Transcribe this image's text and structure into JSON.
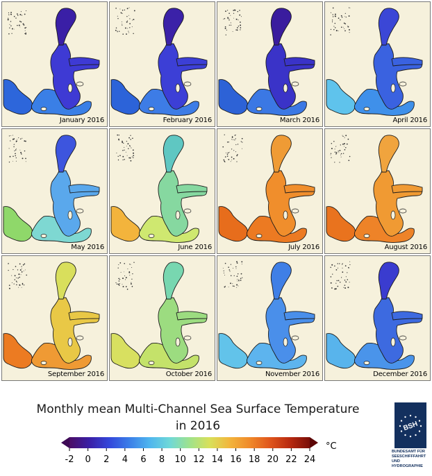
{
  "panels": [
    {
      "label": "January 2016",
      "colors": {
        "north": "#3a1fa6",
        "central": "#3e3ad4",
        "south": "#3a7fe6",
        "west": "#2d66db"
      }
    },
    {
      "label": "February 2016",
      "colors": {
        "north": "#3b21a8",
        "central": "#3c3fd6",
        "south": "#3d7ce6",
        "west": "#2c63d9"
      }
    },
    {
      "label": "March 2016",
      "colors": {
        "north": "#3a1c9e",
        "central": "#3a33c8",
        "south": "#3b78e4",
        "west": "#2d62d6"
      }
    },
    {
      "label": "April 2016",
      "colors": {
        "north": "#3b47d6",
        "central": "#3a62e0",
        "south": "#3f90ea",
        "west": "#5fc3ec"
      }
    },
    {
      "label": "May 2016",
      "colors": {
        "north": "#3d55de",
        "central": "#5aa8ec",
        "south": "#7ed8d2",
        "west": "#8fd86a"
      }
    },
    {
      "label": "June 2016",
      "colors": {
        "north": "#5fc7c2",
        "central": "#86d8a0",
        "south": "#cfe870",
        "west": "#f3b43c"
      }
    },
    {
      "label": "July 2016",
      "colors": {
        "north": "#ef9b35",
        "central": "#f08e2c",
        "south": "#ec7a22",
        "west": "#e76d1c"
      }
    },
    {
      "label": "August 2016",
      "colors": {
        "north": "#f0a43e",
        "central": "#f09a33",
        "south": "#ee8328",
        "west": "#e9731e"
      }
    },
    {
      "label": "September 2016",
      "colors": {
        "north": "#d9df5c",
        "central": "#e9c846",
        "south": "#ef9a34",
        "west": "#ec7b22"
      }
    },
    {
      "label": "October 2016",
      "colors": {
        "north": "#78d7b0",
        "central": "#9cdc80",
        "south": "#c4e26a",
        "west": "#d8e060"
      }
    },
    {
      "label": "November 2016",
      "colors": {
        "north": "#3f7fe6",
        "central": "#4a8fea",
        "south": "#5db4ee",
        "west": "#62c3ea"
      }
    },
    {
      "label": "December 2016",
      "colors": {
        "north": "#3a3ccf",
        "central": "#3d6ae0",
        "south": "#4a94ea",
        "west": "#58b4ec"
      }
    }
  ],
  "title": {
    "line1": "Monthly mean Multi-Channel Sea Surface Temperature",
    "line2": "in 2016"
  },
  "colorbar": {
    "ticks": [
      "-2",
      "0",
      "2",
      "4",
      "6",
      "8",
      "10",
      "12",
      "14",
      "16",
      "18",
      "20",
      "22",
      "24"
    ],
    "min": -2,
    "max": 24,
    "unit": "°C",
    "stops": [
      "#4b0d66",
      "#3a1fa6",
      "#3448db",
      "#3b7fe8",
      "#4fb5ee",
      "#6fd8d8",
      "#9fe28c",
      "#d8e05a",
      "#f2b53c",
      "#f08a2a",
      "#e0561c",
      "#b82a10",
      "#7a0e08"
    ]
  },
  "logo": {
    "initials": "BSH",
    "lines": [
      "BUNDESAMT FÜR",
      "SEESCHIFFFAHRT",
      "UND",
      "HYDROGRAPHIE"
    ],
    "color": "#13305e"
  },
  "colors": {
    "land": "#f6f1dc"
  }
}
